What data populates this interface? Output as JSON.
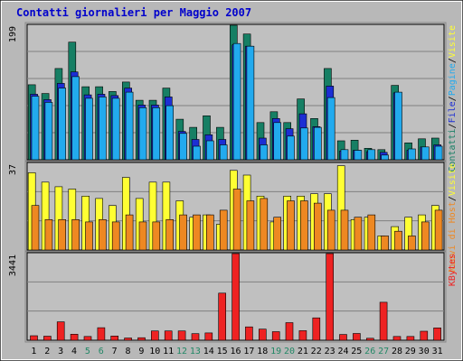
{
  "chart_data": {
    "type": "bar",
    "title": "Contatti giornalieri per Maggio 2007",
    "categories": [
      "1",
      "2",
      "3",
      "4",
      "5",
      "6",
      "7",
      "8",
      "9",
      "10",
      "11",
      "12",
      "13",
      "14",
      "15",
      "16",
      "17",
      "18",
      "19",
      "20",
      "21",
      "22",
      "23",
      "24",
      "25",
      "26",
      "27",
      "28",
      "29",
      "30",
      "31"
    ],
    "weekend_days": [
      "5",
      "6",
      "12",
      "13",
      "19",
      "20",
      "26",
      "27"
    ],
    "colors": {
      "title": "#0000cc",
      "plot_bg": "#c0c0c0",
      "border": "#000000",
      "gridline": "#808080",
      "tick_weekday": "#000000",
      "tick_weekend": "#228866"
    },
    "panels": [
      {
        "id": "visits",
        "ymax_label": "199",
        "ylim": [
          0,
          199
        ],
        "legend": [
          {
            "label": "Contatti",
            "color": "#167f64"
          },
          {
            "label": "/",
            "color": "#000000"
          },
          {
            "label": "File",
            "color": "#1c2ed4"
          },
          {
            "label": "/",
            "color": "#000000"
          },
          {
            "label": "Pagine",
            "color": "#22aaee"
          },
          {
            "label": "/",
            "color": "#000000"
          },
          {
            "label": "Visite",
            "color": "#ffff33"
          }
        ],
        "series": [
          {
            "name": "Contatti",
            "color": "#167f64",
            "values": [
              111,
              98,
              135,
              174,
              108,
              108,
              101,
              115,
              88,
              88,
              106,
              60,
              48,
              65,
              48,
              199,
              186,
              55,
              71,
              55,
              90,
              61,
              135,
              28,
              29,
              17,
              15,
              110,
              25,
              31,
              32
            ]
          },
          {
            "name": "File",
            "color": "#1c2ed4",
            "values": [
              97,
              89,
              113,
              130,
              96,
              97,
              95,
              106,
              81,
              81,
              93,
              42,
              30,
              37,
              30,
              170,
              168,
              32,
              61,
              46,
              68,
              49,
              109,
              13,
              14,
              12,
              11,
              99,
              14,
              19,
              22
            ]
          },
          {
            "name": "Pagine",
            "color": "#22aaee",
            "values": [
              94,
              85,
              106,
              123,
              91,
              93,
              91,
              100,
              77,
              77,
              80,
              39,
              20,
              28,
              22,
              172,
              168,
              22,
              55,
              35,
              47,
              48,
              92,
              15,
              14,
              15,
              7,
              100,
              16,
              19,
              20
            ]
          }
        ]
      },
      {
        "id": "hosts",
        "ymax_label": "37",
        "ylim": [
          0,
          37
        ],
        "legend": [
          {
            "label": "Nuovi di Host",
            "color": "#ee8822"
          },
          {
            "label": "/",
            "color": "#000000"
          },
          {
            "label": "Visite",
            "color": "#ffff33"
          }
        ],
        "series": [
          {
            "name": "Visite",
            "color": "#ffff33",
            "values": [
              33,
              29,
              27,
              26,
              23,
              22,
              19,
              31,
              22,
              29,
              29,
              21,
              14,
              15,
              11,
              34,
              32,
              23,
              12,
              23,
              23,
              24,
              24,
              36,
              13,
              14,
              6,
              10,
              14,
              15,
              19
            ]
          },
          {
            "name": "Nuovi di Host",
            "color": "#ee8822",
            "values": [
              19,
              13,
              13,
              13,
              12,
              13,
              12,
              15,
              12,
              12,
              13,
              15,
              15,
              15,
              17,
              26,
              21,
              22,
              14,
              21,
              21,
              20,
              17,
              17,
              14,
              15,
              6,
              8,
              6,
              12,
              17
            ]
          }
        ]
      },
      {
        "id": "kbytes",
        "ymax_label": "3441",
        "ylim": [
          0,
          3441
        ],
        "legend": [
          {
            "label": "KBytes",
            "color": "#ee2222"
          }
        ],
        "series": [
          {
            "name": "KBytes",
            "color": "#ee2222",
            "values": [
              180,
              160,
              730,
              240,
              150,
              500,
              170,
              90,
              100,
              370,
              370,
              370,
              260,
              290,
              1870,
              3441,
              530,
              440,
              340,
              700,
              380,
              890,
              3441,
              230,
              270,
              80,
              1510,
              150,
              150,
              360,
              490
            ]
          }
        ]
      }
    ]
  }
}
